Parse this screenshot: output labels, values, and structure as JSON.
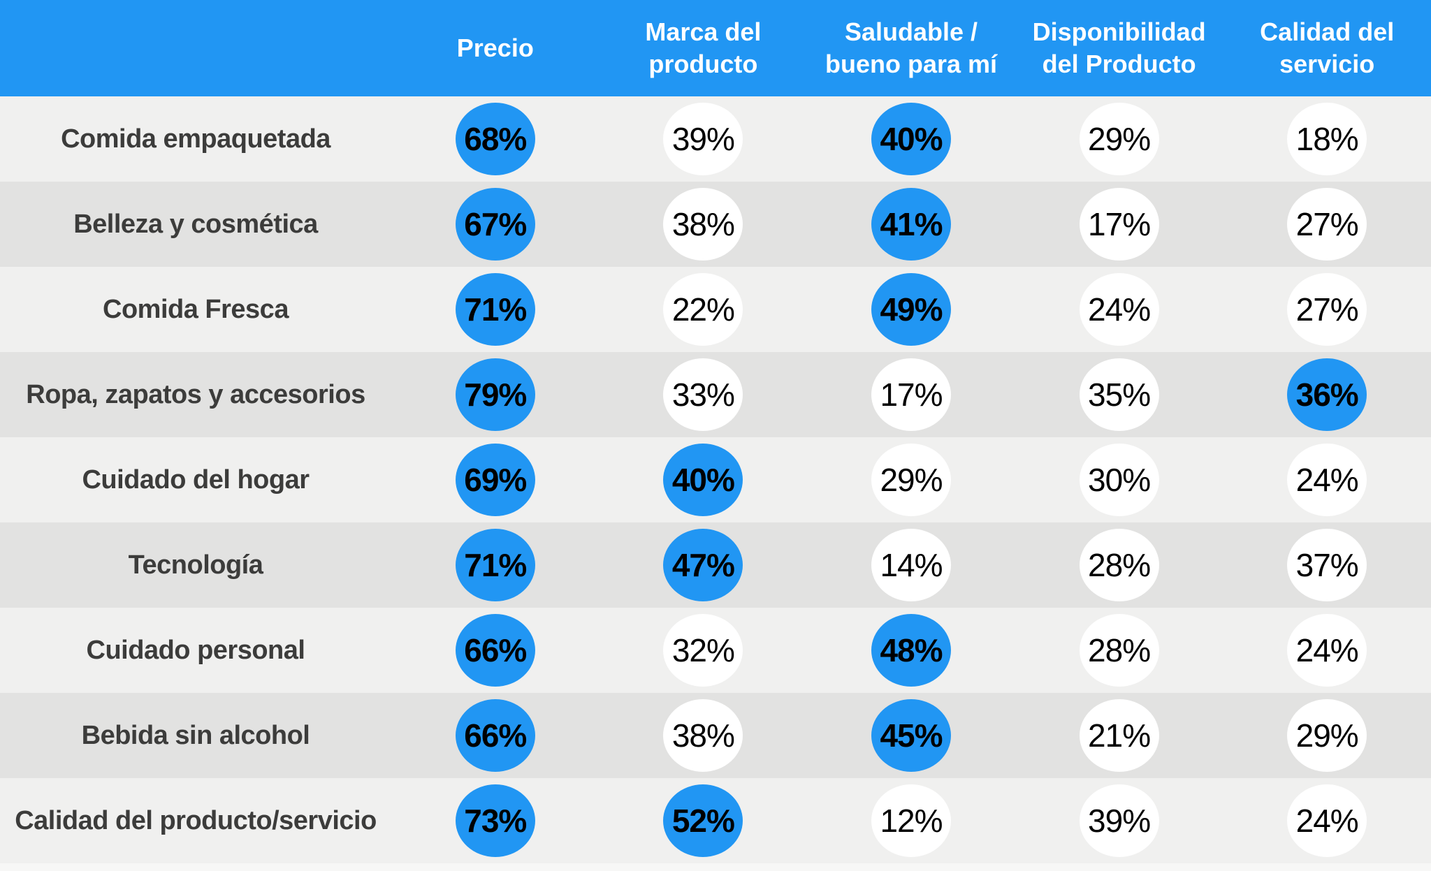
{
  "table": {
    "columns": [
      "Precio",
      "Marca del producto",
      "Saludable / bueno para mí",
      "Disponibilidad del Producto",
      "Calidad del servicio"
    ],
    "rows": [
      {
        "label": "Comida empaquetada",
        "values": [
          {
            "text": "68%",
            "highlighted": true
          },
          {
            "text": "39%",
            "highlighted": false
          },
          {
            "text": "40%",
            "highlighted": true
          },
          {
            "text": "29%",
            "highlighted": false
          },
          {
            "text": "18%",
            "highlighted": false
          }
        ]
      },
      {
        "label": "Belleza y cosmética",
        "values": [
          {
            "text": "67%",
            "highlighted": true
          },
          {
            "text": "38%",
            "highlighted": false
          },
          {
            "text": "41%",
            "highlighted": true
          },
          {
            "text": "17%",
            "highlighted": false
          },
          {
            "text": "27%",
            "highlighted": false
          }
        ]
      },
      {
        "label": "Comida Fresca",
        "values": [
          {
            "text": "71%",
            "highlighted": true
          },
          {
            "text": "22%",
            "highlighted": false
          },
          {
            "text": "49%",
            "highlighted": true
          },
          {
            "text": "24%",
            "highlighted": false
          },
          {
            "text": "27%",
            "highlighted": false
          }
        ]
      },
      {
        "label": "Ropa, zapatos y accesorios",
        "values": [
          {
            "text": "79%",
            "highlighted": true
          },
          {
            "text": "33%",
            "highlighted": false
          },
          {
            "text": "17%",
            "highlighted": false
          },
          {
            "text": "35%",
            "highlighted": false
          },
          {
            "text": "36%",
            "highlighted": true
          }
        ]
      },
      {
        "label": "Cuidado del hogar",
        "values": [
          {
            "text": "69%",
            "highlighted": true
          },
          {
            "text": "40%",
            "highlighted": true
          },
          {
            "text": "29%",
            "highlighted": false
          },
          {
            "text": "30%",
            "highlighted": false
          },
          {
            "text": "24%",
            "highlighted": false
          }
        ]
      },
      {
        "label": "Tecnología",
        "values": [
          {
            "text": "71%",
            "highlighted": true
          },
          {
            "text": "47%",
            "highlighted": true
          },
          {
            "text": "14%",
            "highlighted": false
          },
          {
            "text": "28%",
            "highlighted": false
          },
          {
            "text": "37%",
            "highlighted": false
          }
        ]
      },
      {
        "label": "Cuidado personal",
        "values": [
          {
            "text": "66%",
            "highlighted": true
          },
          {
            "text": "32%",
            "highlighted": false
          },
          {
            "text": "48%",
            "highlighted": true
          },
          {
            "text": "28%",
            "highlighted": false
          },
          {
            "text": "24%",
            "highlighted": false
          }
        ]
      },
      {
        "label": "Bebida sin alcohol",
        "values": [
          {
            "text": "66%",
            "highlighted": true
          },
          {
            "text": "38%",
            "highlighted": false
          },
          {
            "text": "45%",
            "highlighted": true
          },
          {
            "text": "21%",
            "highlighted": false
          },
          {
            "text": "29%",
            "highlighted": false
          }
        ]
      },
      {
        "label": "Calidad del producto/servicio",
        "values": [
          {
            "text": "73%",
            "highlighted": true
          },
          {
            "text": "52%",
            "highlighted": true
          },
          {
            "text": "12%",
            "highlighted": false
          },
          {
            "text": "39%",
            "highlighted": false
          },
          {
            "text": "24%",
            "highlighted": false
          }
        ]
      }
    ]
  },
  "colors": {
    "accent": "#2196F3",
    "row_light": "#F0F0EF",
    "row_dark": "#E2E2E1",
    "bubble_bg": "#FFFFFF",
    "header_text": "#FFFFFF",
    "label_text": "#3C3C3B",
    "value_text": "#000000",
    "bottom_strip": "#F7F7F6"
  },
  "chart_data": {
    "type": "table",
    "title": "",
    "categories": [
      "Comida empaquetada",
      "Belleza y cosmética",
      "Comida Fresca",
      "Ropa, zapatos y accesorios",
      "Cuidado del hogar",
      "Tecnología",
      "Cuidado personal",
      "Bebida sin alcohol",
      "Calidad del producto/servicio"
    ],
    "columns": [
      "Precio",
      "Marca del producto",
      "Saludable / bueno para mí",
      "Disponibilidad del Producto",
      "Calidad del servicio"
    ],
    "series": [
      {
        "name": "Precio",
        "values": [
          68,
          67,
          71,
          79,
          69,
          71,
          66,
          66,
          73
        ]
      },
      {
        "name": "Marca del producto",
        "values": [
          39,
          38,
          22,
          33,
          40,
          47,
          32,
          38,
          52
        ]
      },
      {
        "name": "Saludable / bueno para mí",
        "values": [
          40,
          41,
          49,
          17,
          29,
          14,
          48,
          45,
          12
        ]
      },
      {
        "name": "Disponibilidad del Producto",
        "values": [
          29,
          17,
          24,
          35,
          30,
          28,
          28,
          21,
          39
        ]
      },
      {
        "name": "Calidad del servicio",
        "values": [
          18,
          27,
          27,
          36,
          24,
          37,
          24,
          29,
          24
        ]
      }
    ],
    "highlighted": {
      "Precio": [
        1,
        1,
        1,
        1,
        1,
        1,
        1,
        1,
        1
      ],
      "Marca del producto": [
        0,
        0,
        0,
        0,
        1,
        1,
        0,
        0,
        1
      ],
      "Saludable / bueno para mí": [
        1,
        1,
        1,
        0,
        0,
        0,
        1,
        1,
        0
      ],
      "Disponibilidad del Producto": [
        0,
        0,
        0,
        0,
        0,
        0,
        0,
        0,
        0
      ],
      "Calidad del servicio": [
        0,
        0,
        0,
        1,
        0,
        0,
        0,
        0,
        0
      ]
    },
    "unit": "%",
    "layout_hint": "matrix of percentage bubbles; highlighted values drawn as blue filled circles, others white circles; rows zebra-striped gray"
  }
}
